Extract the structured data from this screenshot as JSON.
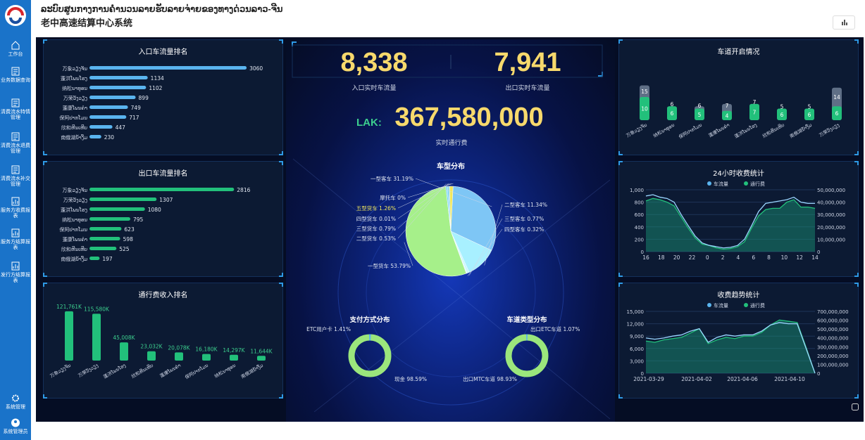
{
  "app": {
    "title_lao": "ລະບົບສູນກາງການຄຳນວນລາຍຮັບລາຍຈ່າຍຂອງທາງດ່ວນລາວ-ຈີນ",
    "title_zh": "老中高速结算中心系统"
  },
  "sidebar": [
    {
      "icon": "home-icon",
      "label": "工作台"
    },
    {
      "icon": "doc-icon",
      "label": "业务数据查询"
    },
    {
      "icon": "doc-icon",
      "label": "清费流水特情管理"
    },
    {
      "icon": "doc-icon",
      "label": "清费流水退费管理"
    },
    {
      "icon": "doc-icon",
      "label": "清费流水补交管理"
    },
    {
      "icon": "chart-icon",
      "label": "服务方收费报表"
    },
    {
      "icon": "chart-icon",
      "label": "服务方结算报表"
    },
    {
      "icon": "chart-icon",
      "label": "发行方结算报表"
    },
    {
      "icon": "gear-icon",
      "label": "系统管理"
    },
    {
      "icon": "user-icon",
      "label": "系统管理员"
    }
  ],
  "entry_rank": {
    "title": "入口车流量排名",
    "color": "#5ab4ee",
    "items": [
      [
        "万象ວຽງຈັນ",
        3060
      ],
      [
        "蓬洪ໂພນໂຮງ",
        1134
      ],
      [
        "纳松ນາທຸອນ",
        1102
      ],
      [
        "万荣ວັງວຽງ",
        899
      ],
      [
        "蓬康ໂພນຄຳ",
        749
      ],
      [
        "保阿ປາກໂມນ",
        717
      ],
      [
        "欣和ຫີນເຫີບ",
        447
      ],
      [
        "南俄湖ນ້ຳງືມ",
        230
      ]
    ]
  },
  "exit_rank": {
    "title": "出口车流量排名",
    "color": "#22c07b",
    "items": [
      [
        "万象ວຽງຈັນ",
        2816
      ],
      [
        "万荣ວັງວຽງ",
        1307
      ],
      [
        "蓬洪ໂພນໂຮງ",
        1080
      ],
      [
        "纳松ນາທຸອນ",
        795
      ],
      [
        "保阿ປາກໂມນ",
        623
      ],
      [
        "蓬康ໂພນຄຳ",
        598
      ],
      [
        "欣和ຫີນເຫີບ",
        525
      ],
      [
        "南俄湖ນ້ຳງືມ",
        197
      ]
    ]
  },
  "revenue_rank": {
    "title": "通行费收入排名",
    "labels": [
      "121,761K",
      "115,580K",
      "45,008K",
      "23,032K",
      "20,078K",
      "16,180K",
      "14,297K",
      "11,644K"
    ],
    "values": [
      121761,
      115580,
      45008,
      23032,
      20078,
      16180,
      14297,
      11644
    ],
    "cats": [
      "万象ວຽງຈັນ",
      "万荣ວັງວຽງ",
      "蓬洪ໂພນໂຮງ",
      "欣和ຫີນເຫີບ",
      "蓬康ໂພນຄຳ",
      "保阿ປາກໂມນ",
      "纳松ນາທຸອນ",
      "南俄湖ນ້ຳງືມ"
    ]
  },
  "stats": {
    "entry": "8,338",
    "entry_label": "入口实时车流量",
    "exit": "7,941",
    "exit_label": "出口实时车流量",
    "currency": "LAK:",
    "toll": "367,580,000",
    "toll_label": "实时通行费"
  },
  "vehicle_pie": {
    "title": "车型分布",
    "slices": [
      [
        "一型客车",
        31.19
      ],
      [
        "二型客车",
        11.34
      ],
      [
        "三型客车",
        0.77
      ],
      [
        "四型客车",
        0.32
      ],
      [
        "一型货车",
        53.79
      ],
      [
        "二型货车",
        0.53
      ],
      [
        "三型货车",
        0.79
      ],
      [
        "四型货车",
        0.01
      ],
      [
        "五型货车",
        1.26
      ],
      [
        "摩托车",
        0
      ]
    ],
    "labels": [
      "一型客车 31.19%",
      "二型客车 11.34%",
      "三型客车 0.77%",
      "四型客车 0.32%",
      "一型货车 53.79%",
      "二型货车 0.53%",
      "三型货车 0.79%",
      "四型货车 0.01%",
      "五型货车 1.26%",
      "摩托车 0%"
    ]
  },
  "payment": {
    "title": "支付方式分布",
    "a": "ETC用户卡 1.41%",
    "b": "现金 98.59%"
  },
  "lanes": {
    "title": "车道类型分布",
    "a": "出口ETC车道 1.07%",
    "b": "出口MTC车道 98.93%"
  },
  "lane_open": {
    "title": "车道开启情况",
    "cats": [
      "万象ວຽງຈັນ",
      "纳松ນາທຸອນ",
      "保阿ປາກໂມນ",
      "蓬康ໂພນຄຳ",
      "蓬洪ໂພນໂຮງ",
      "欣和ຫີນເຫີບ",
      "南俄湖ນ້ຳງືມ",
      "万荣ວັງວຽງ"
    ],
    "total": [
      15,
      6,
      6,
      7,
      7,
      5,
      5,
      14
    ],
    "open": [
      10,
      6,
      5,
      4,
      7,
      6,
      6,
      6
    ]
  },
  "hourly": {
    "title": "24小时收费统计",
    "legend": [
      "车流量",
      "通行费"
    ],
    "x": [
      "16",
      "18",
      "20",
      "22",
      "0",
      "2",
      "4",
      "6",
      "8",
      "10",
      "12",
      "14"
    ],
    "yl": [
      "1,000",
      "800",
      "600",
      "400",
      "200",
      "0"
    ],
    "yr": [
      "50,000,000",
      "40,000,000",
      "30,000,000",
      "20,000,000",
      "10,000,000",
      "0"
    ]
  },
  "trend": {
    "title": "收费趋势统计",
    "legend": [
      "车流量",
      "通行费"
    ],
    "x": [
      "2021-03-29",
      "2021-04-02",
      "2021-04-06",
      "2021-04-10"
    ],
    "yl": [
      "15,000",
      "12,000",
      "9,000",
      "6,000",
      "3,000",
      "0"
    ],
    "yr": [
      "700,000,000",
      "600,000,000",
      "500,000,000",
      "400,000,000",
      "300,000,000",
      "200,000,000",
      "100,000,000",
      "0"
    ]
  }
}
